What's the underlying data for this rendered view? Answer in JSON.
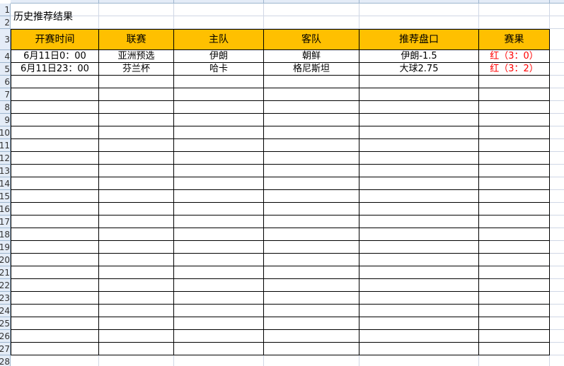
{
  "sheet": {
    "title": "历史推荐结果",
    "columns": [
      "开赛时间",
      "联赛",
      "主队",
      "客队",
      "推荐盘口",
      "赛果"
    ],
    "rows": [
      [
        "6月11日0：00",
        "亚洲预选",
        "伊朗",
        "朝鲜",
        "伊朗-1.5",
        "红（3：0）"
      ],
      [
        "6月11日23：00",
        "芬兰杯",
        "哈卡",
        "格尼斯坦",
        "大球2.75",
        "红（3：2）"
      ]
    ],
    "empty_rows": 22,
    "result_color": "#ff0000",
    "header_fill": "#ffc000"
  }
}
